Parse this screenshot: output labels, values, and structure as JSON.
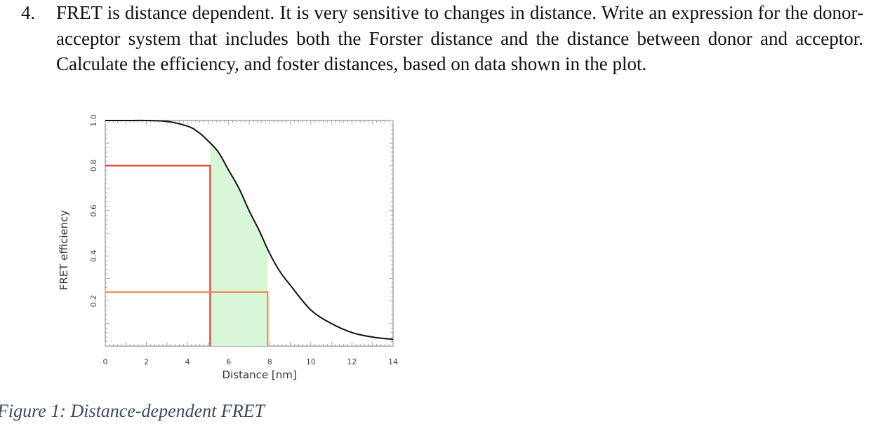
{
  "question": {
    "number": "4.",
    "text": "FRET is distance dependent. It is very sensitive to changes in distance. Write an expression for the donor-acceptor system that includes both the Forster distance and the distance between donor and acceptor. Calculate the efficiency, and foster distances, based on data shown in the plot."
  },
  "caption": "Figure 1: Distance-dependent FRET",
  "chart_data": {
    "type": "line",
    "xlabel": "Distance [nm]",
    "ylabel": "FRET efficiency",
    "xlim": [
      0,
      14
    ],
    "ylim": [
      0,
      1.0
    ],
    "x_ticks": [
      0,
      2,
      4,
      6,
      8,
      10,
      12,
      14
    ],
    "y_ticks": [
      0.2,
      0.4,
      0.6,
      0.8,
      1.0
    ],
    "series": [
      {
        "x": [
          0,
          1,
          2,
          3,
          4,
          4.5,
          5,
          5.5,
          6,
          6.5,
          7,
          7.5,
          8,
          8.5,
          9,
          10,
          11,
          12,
          13,
          14
        ],
        "values": [
          1.0,
          1.0,
          1.0,
          0.996,
          0.975,
          0.95,
          0.91,
          0.86,
          0.78,
          0.7,
          0.6,
          0.51,
          0.41,
          0.33,
          0.27,
          0.16,
          0.1,
          0.06,
          0.04,
          0.03
        ]
      }
    ],
    "annotations": [
      {
        "type": "guide",
        "color": "#e23b3b",
        "x": 5.1,
        "y": 0.8
      },
      {
        "type": "guide",
        "color": "#f08a4b",
        "x": 7.9,
        "y": 0.24
      },
      {
        "type": "shaded_area",
        "color": "#d8f7d8",
        "x_from": 5.1,
        "x_to": 7.9
      }
    ],
    "grid": false,
    "legend": "none"
  }
}
